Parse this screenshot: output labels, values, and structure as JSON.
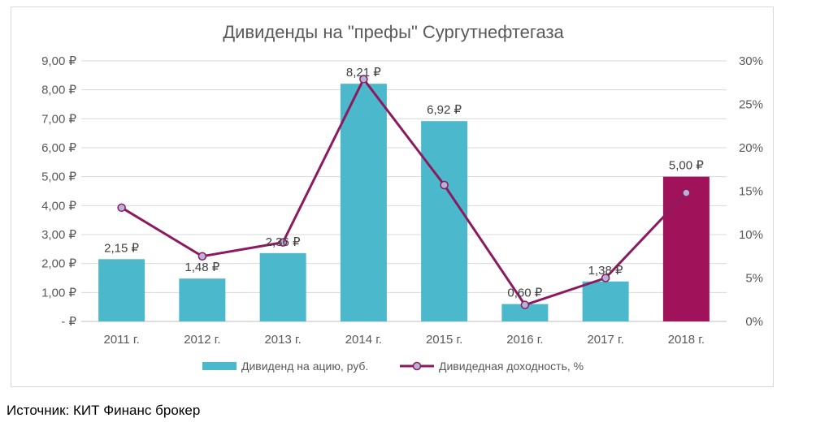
{
  "chart_data": {
    "type": "bar",
    "title": "Дивиденды на \"префы\" Сургутнефтегаза",
    "categories": [
      "2011 г.",
      "2012 г.",
      "2013 г.",
      "2014 г.",
      "2015 г.",
      "2016 г.",
      "2017 г.",
      "2018 г."
    ],
    "series": [
      {
        "name": "Дивиденд на ацию, руб.",
        "kind": "bar",
        "axis": "left",
        "values": [
          2.15,
          1.48,
          2.36,
          8.21,
          6.92,
          0.6,
          1.38,
          5.0
        ],
        "labels": [
          "2,15 ₽",
          "1,48 ₽",
          "2,36 ₽",
          "8,21 ₽",
          "6,92 ₽",
          "0,60 ₽",
          "1,38 ₽",
          "5,00 ₽"
        ],
        "color": "#4bb8cc",
        "highlight_color": "#a0135a",
        "highlight_index": 7
      },
      {
        "name": "Дивидедная доходность, %",
        "kind": "line",
        "axis": "right",
        "values": [
          13.1,
          7.5,
          9.1,
          27.9,
          15.7,
          1.9,
          5.0,
          14.8
        ],
        "color": "#8b1a5e",
        "marker_fill": "#b8b2d6"
      }
    ],
    "y_left": {
      "range": [
        0,
        9
      ],
      "ticks": [
        0,
        1,
        2,
        3,
        4,
        5,
        6,
        7,
        8,
        9
      ],
      "tick_labels": [
        "-   ₽",
        "1,00 ₽",
        "2,00 ₽",
        "3,00 ₽",
        "4,00 ₽",
        "5,00 ₽",
        "6,00 ₽",
        "7,00 ₽",
        "8,00 ₽",
        "9,00 ₽"
      ]
    },
    "y_right": {
      "range": [
        0,
        30
      ],
      "ticks": [
        0,
        5,
        10,
        15,
        20,
        25,
        30
      ],
      "tick_labels": [
        "0%",
        "5%",
        "10%",
        "15%",
        "20%",
        "25%",
        "30%"
      ]
    },
    "grid": true,
    "legend_position": "bottom"
  },
  "source_note": "Источник: КИТ Финанс брокер"
}
